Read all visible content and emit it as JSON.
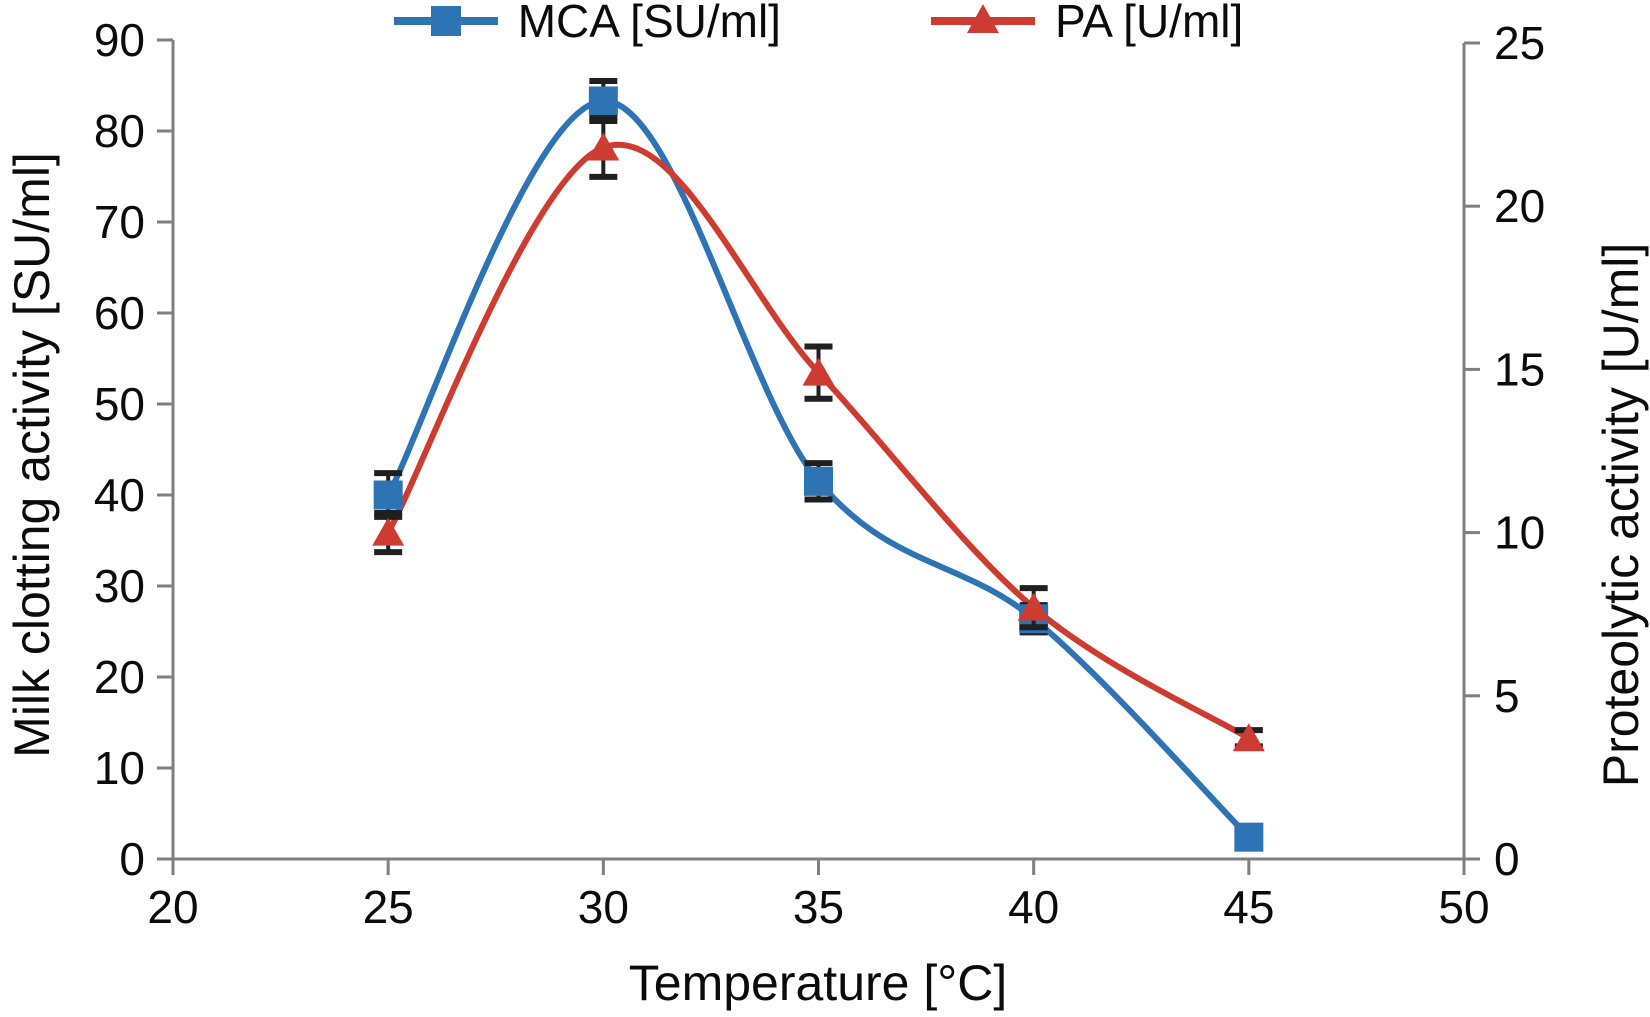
{
  "colors": {
    "mca_blue": "#2e73b4",
    "pa_red": "#ce3b30",
    "axis_gray": "#7f7f7f",
    "text_black": "#0b0b0b",
    "error_bar_black": "#1f1f1f"
  },
  "legend": {
    "items": [
      {
        "label": "MCA [SU/ml]",
        "marker": "square"
      },
      {
        "label": "PA [U/ml]",
        "marker": "triangle"
      }
    ]
  },
  "chart_data": {
    "type": "line",
    "x": [
      25,
      30,
      35,
      40,
      45
    ],
    "xlabel": "Temperature [°C]",
    "xlim": [
      20,
      50
    ],
    "xticks": [
      20,
      25,
      30,
      35,
      40,
      45,
      50
    ],
    "left_axis": {
      "label": "Milk clotting activity [SU/ml]",
      "lim": [
        0,
        90
      ],
      "ticks": [
        0,
        10,
        20,
        30,
        40,
        50,
        60,
        70,
        80,
        90
      ]
    },
    "right_axis": {
      "label": "Proteolytic activity [U/ml]",
      "lim": [
        0,
        25
      ],
      "ticks": [
        0,
        5,
        10,
        15,
        20,
        25
      ]
    },
    "grid": false,
    "legend_position": "top-center",
    "series": [
      {
        "name": "MCA [SU/ml]",
        "axis": "left",
        "color": "#2e73b4",
        "marker": "square",
        "values": [
          40.0,
          83.3,
          41.5,
          26.4,
          2.4
        ],
        "errors": [
          2.4,
          2.2,
          2.0,
          1.5,
          0
        ]
      },
      {
        "name": "PA [U/ml]",
        "axis": "right",
        "color": "#ce3b30",
        "marker": "triangle",
        "values": [
          10.0,
          21.8,
          14.9,
          7.7,
          3.7
        ],
        "errors": [
          0.6,
          0.9,
          0.8,
          0.6,
          0.25
        ]
      }
    ]
  }
}
